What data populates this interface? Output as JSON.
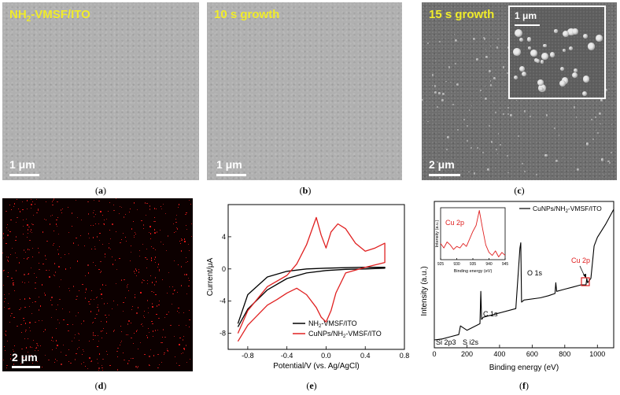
{
  "panel_a": {
    "title": "NH",
    "title_sub": "2",
    "title_rest": "-VMSF/ITO",
    "scale": "1 μm",
    "caption_letter": "a"
  },
  "panel_b": {
    "title": "10 s growth",
    "scale": "1 μm",
    "caption_letter": "b"
  },
  "panel_c": {
    "title": "15 s growth",
    "scale": "2 μm",
    "inset_scale": "1 μm",
    "caption_letter": "c"
  },
  "panel_d": {
    "scale": "2 μm",
    "caption_letter": "d"
  },
  "panel_e": {
    "caption_letter": "e"
  },
  "panel_f": {
    "caption_letter": "f"
  },
  "chart_data": [
    {
      "type": "line",
      "id": "cv",
      "xlabel": "Potential/V (vs. Ag/AgCl)",
      "ylabel": "Current/μA",
      "xlim": [
        -1.0,
        0.8
      ],
      "ylim": [
        -10,
        8
      ],
      "xticks": [
        "-0.8",
        "-0.4",
        "0.0",
        "0.4",
        "0.8"
      ],
      "yticks": [
        "-8",
        "-4",
        "0",
        "4"
      ],
      "legend": [
        {
          "name": "NH2-VMSF/ITO",
          "label": "NH",
          "sub": "2",
          "rest": "-VMSF/ITO",
          "color": "#000000"
        },
        {
          "name": "CuNPs/NH2-VMSF/ITO",
          "label": "CuNPs/NH",
          "sub": "2",
          "rest": "-VMSF/ITO",
          "color": "#e02020"
        }
      ],
      "series": [
        {
          "name": "NH2-VMSF/ITO",
          "x": [
            -0.9,
            -0.8,
            -0.6,
            -0.4,
            -0.2,
            0.0,
            0.2,
            0.4,
            0.6,
            0.6,
            0.4,
            0.2,
            0.0,
            -0.2,
            -0.4,
            -0.6,
            -0.8,
            -0.9
          ],
          "y": [
            -7.2,
            -5.0,
            -2.6,
            -1.2,
            -0.5,
            -0.2,
            -0.05,
            0.0,
            0.1,
            0.2,
            0.2,
            0.15,
            0.1,
            0.0,
            -0.3,
            -1.0,
            -3.2,
            -6.8
          ]
        },
        {
          "name": "CuNPs/NH2-VMSF/ITO",
          "x": [
            -0.9,
            -0.8,
            -0.6,
            -0.5,
            -0.4,
            -0.3,
            -0.2,
            -0.1,
            -0.05,
            0.0,
            0.05,
            0.1,
            0.2,
            0.4,
            0.6,
            0.6,
            0.5,
            0.4,
            0.3,
            0.2,
            0.12,
            0.05,
            0.0,
            -0.05,
            -0.1,
            -0.2,
            -0.3,
            -0.4,
            -0.6,
            -0.8,
            -0.9
          ],
          "y": [
            -9.0,
            -7.0,
            -4.5,
            -3.8,
            -3.0,
            -2.4,
            -3.2,
            -4.8,
            -6.0,
            -6.6,
            -5.2,
            -3.0,
            -0.5,
            0.2,
            0.8,
            3.2,
            2.6,
            2.2,
            3.2,
            5.0,
            5.6,
            4.6,
            2.6,
            4.2,
            6.4,
            3.0,
            0.6,
            -0.8,
            -2.2,
            -5.2,
            -8.0
          ]
        }
      ]
    },
    {
      "type": "line",
      "id": "xps",
      "xlabel": "Binding energy (eV)",
      "ylabel": "Intensity (a.u.)",
      "xlim": [
        0,
        1100
      ],
      "xticks": [
        "0",
        "200",
        "400",
        "600",
        "800",
        "1000"
      ],
      "legend": [
        {
          "name": "CuNPs/NH2-VMSF/ITO",
          "label": "CuNPs/NH",
          "sub": "2",
          "rest": "-VMSF/ITO",
          "color": "#000000"
        }
      ],
      "annotations": [
        "Si 2p3",
        "S i2s",
        "C 1s",
        "O 1s",
        "Cu 2p"
      ],
      "series": [
        {
          "name": "CuNPs/NH2-VMSF/ITO",
          "x": [
            0,
            50,
            100,
            150,
            160,
            200,
            280,
            285,
            290,
            300,
            400,
            500,
            525,
            530,
            535,
            550,
            650,
            700,
            740,
            745,
            750,
            800,
            850,
            900,
            930,
            935,
            940,
            960,
            980,
            1000,
            1050,
            1100
          ],
          "y": [
            5,
            6,
            8,
            10,
            18,
            14,
            20,
            50,
            24,
            26,
            30,
            34,
            90,
            95,
            40,
            42,
            44,
            46,
            48,
            58,
            50,
            52,
            54,
            56,
            56,
            62,
            58,
            62,
            92,
            100,
            112,
            126
          ]
        }
      ]
    },
    {
      "type": "line",
      "id": "xps-inset",
      "title": "Cu 2p",
      "xlabel": "Binding energy (eV)",
      "ylabel": "Intensity (a.u.)",
      "xlim": [
        925,
        945
      ],
      "xticks": [
        "925",
        "930",
        "935",
        "940",
        "945"
      ],
      "series": [
        {
          "name": "Cu 2p",
          "x": [
            925,
            926,
            927,
            928,
            929,
            930,
            931,
            932,
            933,
            934,
            935,
            936,
            937,
            938,
            939,
            940,
            941,
            942,
            943,
            944,
            945
          ],
          "y": [
            42,
            36,
            44,
            40,
            34,
            38,
            36,
            42,
            38,
            48,
            58,
            66,
            86,
            62,
            40,
            30,
            26,
            32,
            24,
            30,
            26
          ]
        }
      ]
    }
  ]
}
